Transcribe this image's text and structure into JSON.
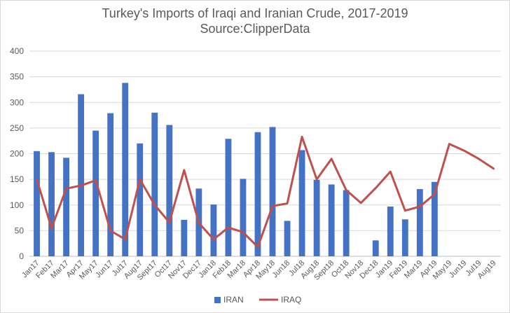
{
  "chart_data": {
    "type": "bar",
    "title": "Turkey's Imports of Iraqi and Iranian Crude, 2017-2019",
    "subtitle": "Source:ClipperData",
    "ylim": [
      0,
      400
    ],
    "y_ticks": [
      0,
      50,
      100,
      150,
      200,
      250,
      300,
      350,
      400
    ],
    "grid": "horizontal",
    "legend_position": "bottom",
    "categories": [
      "Jan17",
      "Feb17",
      "Mar17",
      "Apr17",
      "May17",
      "Jun17",
      "Jul17",
      "Aug17",
      "Sept17",
      "Oct17",
      "Nov17",
      "Dec17",
      "Jan18",
      "Feb18",
      "Mar18",
      "Apr18",
      "May18",
      "Jun18",
      "Jul18",
      "Aug18",
      "Sept18",
      "Oct18",
      "Nov18",
      "Dec18",
      "Jan19",
      "Feb19",
      "Mar19",
      "Apr19",
      "May19",
      "Jun19",
      "Jul19",
      "Aug19"
    ],
    "series": [
      {
        "name": "IRAN",
        "type": "bar",
        "color": "#4472c4",
        "values": [
          205,
          203,
          192,
          316,
          245,
          279,
          338,
          220,
          280,
          256,
          71,
          132,
          101,
          229,
          151,
          242,
          252,
          69,
          207,
          149,
          140,
          129,
          null,
          31,
          97,
          72,
          131,
          145,
          null,
          null,
          null,
          null
        ]
      },
      {
        "name": "IRAQ",
        "type": "line",
        "color": "#c0504d",
        "values": [
          150,
          55,
          132,
          138,
          148,
          50,
          33,
          150,
          100,
          66,
          168,
          65,
          33,
          56,
          47,
          18,
          98,
          103,
          233,
          150,
          190,
          129,
          104,
          133,
          165,
          89,
          97,
          121,
          219,
          206,
          190,
          171
        ]
      }
    ]
  }
}
